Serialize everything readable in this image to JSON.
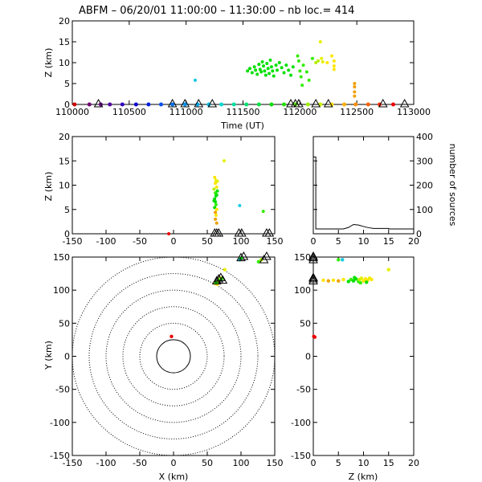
{
  "title": "ABFM – 06/20/01 11:00:00 – 11:30:00 – nb loc.=     414",
  "chart_data": [
    {
      "id": "time_height",
      "type": "scatter",
      "xlabel": "Time (UT)",
      "ylabel": "Z (km)",
      "xlim": [
        110000,
        113000
      ],
      "ylim": [
        0,
        20
      ],
      "xticks": [
        110000,
        110500,
        111000,
        111500,
        112000,
        112500,
        113000
      ],
      "yticks": [
        0,
        5,
        10,
        15,
        20
      ],
      "points": [
        {
          "x": 111080,
          "y": 5.8,
          "c": "#19c8e6"
        },
        {
          "x": 111540,
          "y": 8.0,
          "c": "#00e000"
        },
        {
          "x": 111560,
          "y": 8.6,
          "c": "#00e000"
        },
        {
          "x": 111580,
          "y": 7.6,
          "c": "#00e000"
        },
        {
          "x": 111600,
          "y": 9.0,
          "c": "#00e000"
        },
        {
          "x": 111610,
          "y": 8.2,
          "c": "#00e000"
        },
        {
          "x": 111625,
          "y": 7.2,
          "c": "#00e000"
        },
        {
          "x": 111640,
          "y": 9.6,
          "c": "#00e000"
        },
        {
          "x": 111650,
          "y": 8.4,
          "c": "#00e000"
        },
        {
          "x": 111660,
          "y": 7.8,
          "c": "#00e000"
        },
        {
          "x": 111670,
          "y": 10.2,
          "c": "#00e000"
        },
        {
          "x": 111680,
          "y": 9.2,
          "c": "#00e000"
        },
        {
          "x": 111690,
          "y": 8.0,
          "c": "#00e000"
        },
        {
          "x": 111700,
          "y": 7.0,
          "c": "#00e000"
        },
        {
          "x": 111710,
          "y": 9.8,
          "c": "#00e000"
        },
        {
          "x": 111720,
          "y": 8.6,
          "c": "#00e000"
        },
        {
          "x": 111730,
          "y": 7.4,
          "c": "#00e000"
        },
        {
          "x": 111740,
          "y": 10.6,
          "c": "#00e000"
        },
        {
          "x": 111750,
          "y": 9.0,
          "c": "#00e000"
        },
        {
          "x": 111760,
          "y": 8.0,
          "c": "#00e000"
        },
        {
          "x": 111770,
          "y": 6.8,
          "c": "#00e000"
        },
        {
          "x": 111790,
          "y": 9.4,
          "c": "#00e000"
        },
        {
          "x": 111800,
          "y": 8.2,
          "c": "#00e000"
        },
        {
          "x": 111820,
          "y": 10.0,
          "c": "#00e000"
        },
        {
          "x": 111840,
          "y": 8.8,
          "c": "#00e000"
        },
        {
          "x": 111860,
          "y": 7.6,
          "c": "#00e000"
        },
        {
          "x": 111880,
          "y": 9.4,
          "c": "#00e000"
        },
        {
          "x": 111900,
          "y": 8.2,
          "c": "#00e000"
        },
        {
          "x": 111920,
          "y": 7.0,
          "c": "#00e000"
        },
        {
          "x": 111940,
          "y": 9.0,
          "c": "#00e000"
        },
        {
          "x": 111980,
          "y": 11.6,
          "c": "#33ee00"
        },
        {
          "x": 111990,
          "y": 10.4,
          "c": "#33ee00"
        },
        {
          "x": 112000,
          "y": 8.0,
          "c": "#33ee00"
        },
        {
          "x": 112010,
          "y": 6.6,
          "c": "#33ee00"
        },
        {
          "x": 112020,
          "y": 4.6,
          "c": "#33ee00"
        },
        {
          "x": 112030,
          "y": 9.4,
          "c": "#33ee00"
        },
        {
          "x": 112060,
          "y": 7.8,
          "c": "#33ee00"
        },
        {
          "x": 112080,
          "y": 5.8,
          "c": "#33ee00"
        },
        {
          "x": 112110,
          "y": 11.0,
          "c": "#33ee00"
        },
        {
          "x": 112140,
          "y": 10.0,
          "c": "#b4f000"
        },
        {
          "x": 112160,
          "y": 10.4,
          "c": "#b4f000"
        },
        {
          "x": 112180,
          "y": 15.0,
          "c": "#e6f000"
        },
        {
          "x": 112190,
          "y": 11.0,
          "c": "#e6f000"
        },
        {
          "x": 112200,
          "y": 10.2,
          "c": "#e6f000"
        },
        {
          "x": 112240,
          "y": 10.0,
          "c": "#ffe600"
        },
        {
          "x": 112280,
          "y": 11.6,
          "c": "#ffe600"
        },
        {
          "x": 112300,
          "y": 10.4,
          "c": "#ffe600"
        },
        {
          "x": 112300,
          "y": 9.2,
          "c": "#ffe600"
        },
        {
          "x": 112300,
          "y": 8.4,
          "c": "#ffe600"
        },
        {
          "x": 112480,
          "y": 5.0,
          "c": "#f0a000"
        },
        {
          "x": 112480,
          "y": 4.2,
          "c": "#f0a000"
        },
        {
          "x": 112480,
          "y": 3.0,
          "c": "#f0a000"
        },
        {
          "x": 112480,
          "y": 2.0,
          "c": "#f0a000"
        }
      ],
      "ground_dots": [
        {
          "x": 110020,
          "c": "#d00000"
        },
        {
          "x": 110150,
          "c": "#700070"
        },
        {
          "x": 110250,
          "c": "#700090"
        },
        {
          "x": 110330,
          "c": "#5000a0"
        },
        {
          "x": 110440,
          "c": "#3000c0"
        },
        {
          "x": 110560,
          "c": "#1000d0"
        },
        {
          "x": 110670,
          "c": "#0020e0"
        },
        {
          "x": 110780,
          "c": "#0050f0"
        },
        {
          "x": 110880,
          "c": "#0070f0"
        },
        {
          "x": 110990,
          "c": "#0090f0"
        },
        {
          "x": 111100,
          "c": "#00a8f0"
        },
        {
          "x": 111200,
          "c": "#00c0e8"
        },
        {
          "x": 111310,
          "c": "#00d8d0"
        },
        {
          "x": 111420,
          "c": "#00e0a0"
        },
        {
          "x": 111530,
          "c": "#00e070"
        },
        {
          "x": 111640,
          "c": "#00e040"
        },
        {
          "x": 111750,
          "c": "#00e000"
        },
        {
          "x": 111860,
          "c": "#20e000"
        },
        {
          "x": 111960,
          "c": "#60e800"
        },
        {
          "x": 112070,
          "c": "#a0f000"
        },
        {
          "x": 112180,
          "c": "#d0f000"
        },
        {
          "x": 112280,
          "c": "#ffe000"
        },
        {
          "x": 112390,
          "c": "#ffb000"
        },
        {
          "x": 112490,
          "c": "#ff9000"
        },
        {
          "x": 112600,
          "c": "#ff6000"
        },
        {
          "x": 112700,
          "c": "#ff3000"
        },
        {
          "x": 112820,
          "c": "#ee0000"
        }
      ],
      "triangles_x": [
        110230,
        110880,
        110990,
        111110,
        111230,
        111920,
        111960,
        111990,
        112140,
        112250,
        112730,
        112920
      ]
    },
    {
      "id": "x_height",
      "type": "scatter",
      "xlabel": "",
      "ylabel": "Z (km)",
      "xlim": [
        -150,
        150
      ],
      "ylim": [
        0,
        20
      ],
      "xticks": [
        -150,
        -100,
        -50,
        0,
        50,
        100,
        150
      ],
      "yticks": [
        0,
        5,
        10,
        15,
        20
      ],
      "points": [
        {
          "x": 61,
          "y": 11.6,
          "c": "#ffe600"
        },
        {
          "x": 62,
          "y": 10.4,
          "c": "#ffe600"
        },
        {
          "x": 63,
          "y": 11.0,
          "c": "#e6f000"
        },
        {
          "x": 64,
          "y": 9.6,
          "c": "#ffe600"
        },
        {
          "x": 60,
          "y": 9.2,
          "c": "#b4f000"
        },
        {
          "x": 62,
          "y": 8.4,
          "c": "#33ee00"
        },
        {
          "x": 63,
          "y": 7.8,
          "c": "#00e000"
        },
        {
          "x": 61,
          "y": 7.2,
          "c": "#00e000"
        },
        {
          "x": 64,
          "y": 8.0,
          "c": "#00e000"
        },
        {
          "x": 62,
          "y": 6.6,
          "c": "#00e000"
        },
        {
          "x": 63,
          "y": 6.0,
          "c": "#33ee00"
        },
        {
          "x": 61,
          "y": 5.4,
          "c": "#00e000"
        },
        {
          "x": 64,
          "y": 5.0,
          "c": "#ffe600"
        },
        {
          "x": 62,
          "y": 4.4,
          "c": "#f0a000"
        },
        {
          "x": 63,
          "y": 3.8,
          "c": "#ffe600"
        },
        {
          "x": 62,
          "y": 3.0,
          "c": "#f0a000"
        },
        {
          "x": 64,
          "y": 2.2,
          "c": "#f0a000"
        },
        {
          "x": 65,
          "y": 10.8,
          "c": "#e6f000"
        },
        {
          "x": 65,
          "y": 8.8,
          "c": "#00e000"
        },
        {
          "x": 60,
          "y": 6.8,
          "c": "#00e000"
        },
        {
          "x": 75,
          "y": 15.0,
          "c": "#e6f000"
        },
        {
          "x": 98,
          "y": 5.8,
          "c": "#19c8e6"
        },
        {
          "x": 133,
          "y": 4.6,
          "c": "#33ee00"
        },
        {
          "x": -7,
          "y": 0.0,
          "c": "#ee0000"
        }
      ],
      "triangles_x": [
        61,
        64,
        67,
        97,
        101,
        138,
        142
      ]
    },
    {
      "id": "height_histogram",
      "type": "line",
      "xlabel": "",
      "ylabel": "number of sources",
      "xlim": [
        0,
        20
      ],
      "ylim": [
        0,
        400
      ],
      "xticks": [
        0,
        5,
        10,
        15,
        20
      ],
      "yticks": [
        0,
        100,
        200,
        300,
        400
      ],
      "x": [
        0,
        0.5,
        0.5,
        1,
        2,
        3,
        4,
        5,
        6,
        7,
        8,
        9,
        10,
        11,
        12,
        13,
        14,
        15,
        15,
        20
      ],
      "values": [
        316,
        316,
        20,
        20,
        20,
        20,
        20,
        20,
        20,
        26,
        38,
        36,
        30,
        25,
        22,
        22,
        22,
        22,
        20,
        20
      ]
    },
    {
      "id": "plan_view",
      "type": "scatter",
      "xlabel": "X (km)",
      "ylabel": "Y (km)",
      "xlim": [
        -150,
        150
      ],
      "ylim": [
        -150,
        150
      ],
      "xticks": [
        -150,
        -100,
        -50,
        0,
        50,
        100,
        150
      ],
      "yticks": [
        -150,
        -100,
        -50,
        0,
        50,
        100,
        150
      ],
      "range_rings_km": [
        25,
        50,
        75,
        100,
        125,
        150
      ],
      "points": [
        {
          "x": -3,
          "y": 30,
          "c": "#ee0000"
        },
        {
          "x": 62,
          "y": 110,
          "c": "#ffe600"
        },
        {
          "x": 64,
          "y": 112,
          "c": "#e6f000"
        },
        {
          "x": 66,
          "y": 113,
          "c": "#33ee00"
        },
        {
          "x": 67,
          "y": 115,
          "c": "#b4f000"
        },
        {
          "x": 69,
          "y": 116,
          "c": "#00e000"
        },
        {
          "x": 70,
          "y": 118,
          "c": "#ffe600"
        },
        {
          "x": 65,
          "y": 109,
          "c": "#ffe600"
        },
        {
          "x": 63,
          "y": 111,
          "c": "#00e000"
        },
        {
          "x": 71,
          "y": 117,
          "c": "#33ee00"
        },
        {
          "x": 76,
          "y": 131,
          "c": "#e6f000"
        },
        {
          "x": 98,
          "y": 146,
          "c": "#19c8e6"
        },
        {
          "x": 100,
          "y": 148,
          "c": "#00e000"
        },
        {
          "x": 126,
          "y": 143,
          "c": "#33ee00"
        },
        {
          "x": 130,
          "y": 146,
          "c": "#b4f000"
        }
      ],
      "triangles": [
        {
          "x": 64,
          "y": 113
        },
        {
          "x": 67,
          "y": 116
        },
        {
          "x": 70,
          "y": 118
        },
        {
          "x": 73,
          "y": 114
        },
        {
          "x": 100,
          "y": 148
        },
        {
          "x": 104,
          "y": 150
        },
        {
          "x": 134,
          "y": 145
        },
        {
          "x": 138,
          "y": 150
        }
      ]
    },
    {
      "id": "height_y",
      "type": "scatter",
      "xlabel": "Z (km)",
      "ylabel": "",
      "xlim": [
        0,
        20
      ],
      "ylim": [
        -150,
        150
      ],
      "xticks": [
        0,
        5,
        10,
        15,
        20
      ],
      "yticks": [
        -150,
        -100,
        -50,
        0,
        50,
        100,
        150
      ],
      "points": [
        {
          "x": 0.1,
          "y": 30,
          "c": "#ee0000"
        },
        {
          "x": 0.3,
          "y": 29,
          "c": "#ee0000"
        },
        {
          "x": 2.0,
          "y": 115,
          "c": "#ffe600"
        },
        {
          "x": 3.0,
          "y": 114,
          "c": "#f0a000"
        },
        {
          "x": 4.0,
          "y": 115,
          "c": "#ffe600"
        },
        {
          "x": 5.0,
          "y": 114,
          "c": "#f0a000"
        },
        {
          "x": 6.0,
          "y": 116,
          "c": "#ffe600"
        },
        {
          "x": 7.0,
          "y": 113,
          "c": "#00e000"
        },
        {
          "x": 7.5,
          "y": 116,
          "c": "#33ee00"
        },
        {
          "x": 8.0,
          "y": 114,
          "c": "#00e000"
        },
        {
          "x": 8.5,
          "y": 117,
          "c": "#00e000"
        },
        {
          "x": 9.0,
          "y": 113,
          "c": "#33ee00"
        },
        {
          "x": 9.2,
          "y": 116,
          "c": "#b4f000"
        },
        {
          "x": 9.6,
          "y": 118,
          "c": "#e6f000"
        },
        {
          "x": 10.0,
          "y": 114,
          "c": "#ffe600"
        },
        {
          "x": 10.4,
          "y": 117,
          "c": "#ffe600"
        },
        {
          "x": 10.8,
          "y": 115,
          "c": "#ffe600"
        },
        {
          "x": 11.2,
          "y": 118,
          "c": "#e6f000"
        },
        {
          "x": 11.6,
          "y": 116,
          "c": "#ffe600"
        },
        {
          "x": 8.2,
          "y": 119,
          "c": "#00e000"
        },
        {
          "x": 9.4,
          "y": 111,
          "c": "#33ee00"
        },
        {
          "x": 10.6,
          "y": 112,
          "c": "#00e000"
        },
        {
          "x": 15.0,
          "y": 131,
          "c": "#e6f000"
        },
        {
          "x": 5.0,
          "y": 146,
          "c": "#33ee00"
        },
        {
          "x": 5.8,
          "y": 146,
          "c": "#19c8e6"
        }
      ],
      "triangles_y": [
        145,
        148,
        150,
        113,
        116,
        118
      ]
    }
  ]
}
